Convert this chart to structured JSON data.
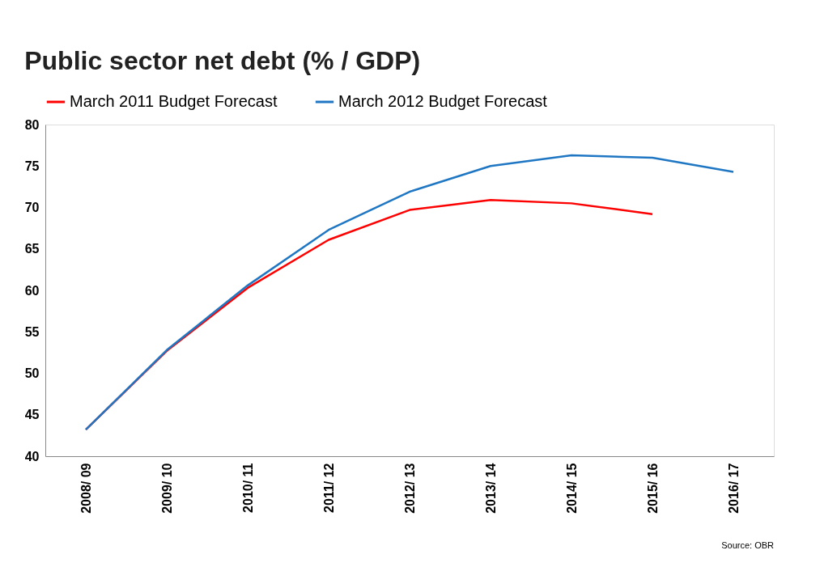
{
  "chart_data": {
    "type": "line",
    "title": "Public sector net debt (% / GDP)",
    "categories": [
      "2008/ 09",
      "2009/ 10",
      "2010/ 11",
      "2011/ 12",
      "2012/ 13",
      "2013/ 14",
      "2014/ 15",
      "2015/ 16",
      "2016/ 17"
    ],
    "series": [
      {
        "name": "March 2011 Budget Forecast",
        "color": "#ff0000",
        "values": [
          43.2,
          52.7,
          60.3,
          66.1,
          69.7,
          70.9,
          70.5,
          69.2,
          null
        ]
      },
      {
        "name": "March 2012 Budget Forecast",
        "color": "#1f77c4",
        "values": [
          43.2,
          52.8,
          60.6,
          67.3,
          71.9,
          75.0,
          76.3,
          76.0,
          74.3
        ]
      }
    ],
    "ylim": [
      40,
      80
    ],
    "yticks": [
      40,
      45,
      50,
      55,
      60,
      65,
      70,
      75,
      80
    ],
    "grid": false,
    "legend": "top",
    "marker": "none",
    "line_style": "solid",
    "annotations": [
      "Source: OBR"
    ]
  }
}
